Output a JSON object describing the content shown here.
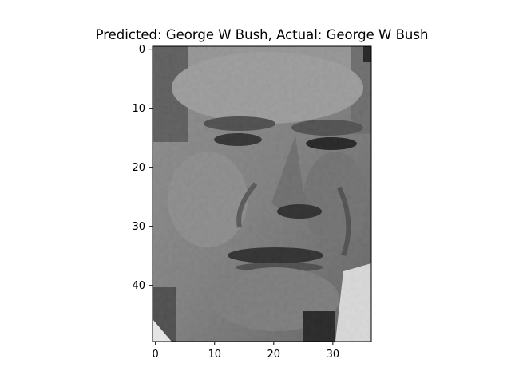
{
  "chart_data": {
    "type": "heatmap",
    "title": "Predicted: George W Bush, Actual: George W Bush",
    "colormap": "gray",
    "xlabel": "",
    "ylabel": "",
    "image_shape": [
      50,
      37
    ],
    "xlim": [
      -0.5,
      36.5
    ],
    "ylim": [
      49.5,
      -0.5
    ],
    "x_ticks": [
      0,
      10,
      20,
      30
    ],
    "y_ticks": [
      0,
      10,
      20,
      30,
      40
    ]
  },
  "colors": {
    "background": "#ffffff",
    "axis": "#000000"
  }
}
